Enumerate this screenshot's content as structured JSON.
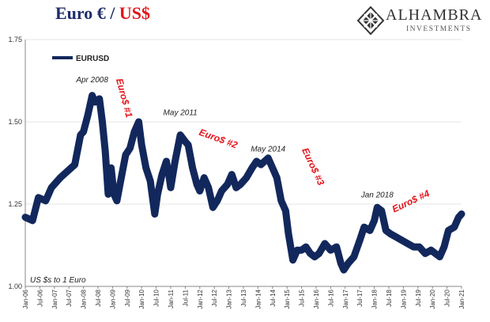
{
  "header": {
    "title_part1": "Euro € / ",
    "title_part2": "US$",
    "logo_name": "ALHAMBRA",
    "logo_sub": "INVESTMENTS",
    "logo_icon": "diamond-lattice-icon",
    "title_colors": {
      "part1": "#1f2d6b",
      "part2": "#e3141b"
    }
  },
  "chart_data": {
    "type": "line",
    "title": "Euro € / US$",
    "ylim": [
      1.0,
      1.75
    ],
    "yticks": [
      "1.00",
      "1.25",
      "1.50",
      "1.75"
    ],
    "xticks": [
      "Jan-06",
      "Jul-06",
      "Jan-07",
      "Jul-07",
      "Jan-08",
      "Jul-08",
      "Jan-09",
      "Jul-09",
      "Jan-10",
      "Jul-10",
      "Jan-11",
      "Jul-11",
      "Jan-12",
      "Jul-12",
      "Jan-13",
      "Jul-13",
      "Jan-14",
      "Jul-14",
      "Jan-15",
      "Jul-15",
      "Jan-16",
      "Jul-16",
      "Jan-17",
      "Jul-17",
      "Jan-18",
      "Jul-18",
      "Jan-19",
      "Jul-19",
      "Jan-20",
      "Jul-20",
      "Jan-21"
    ],
    "legend": {
      "label": "EURUSD",
      "position": "top-left"
    },
    "line_color": "#12285c",
    "grid": "horizontal",
    "note": "US $s to 1 Euro",
    "series": [
      {
        "name": "EURUSD",
        "points": [
          [
            2006.0,
            1.21
          ],
          [
            2006.25,
            1.2
          ],
          [
            2006.45,
            1.27
          ],
          [
            2006.7,
            1.26
          ],
          [
            2006.9,
            1.3
          ],
          [
            2007.0,
            1.31
          ],
          [
            2007.2,
            1.33
          ],
          [
            2007.45,
            1.35
          ],
          [
            2007.7,
            1.37
          ],
          [
            2007.9,
            1.46
          ],
          [
            2008.0,
            1.47
          ],
          [
            2008.15,
            1.52
          ],
          [
            2008.3,
            1.58
          ],
          [
            2008.4,
            1.56
          ],
          [
            2008.55,
            1.57
          ],
          [
            2008.65,
            1.5
          ],
          [
            2008.75,
            1.41
          ],
          [
            2008.85,
            1.28
          ],
          [
            2008.95,
            1.36
          ],
          [
            2009.05,
            1.28
          ],
          [
            2009.15,
            1.26
          ],
          [
            2009.3,
            1.33
          ],
          [
            2009.45,
            1.4
          ],
          [
            2009.6,
            1.42
          ],
          [
            2009.75,
            1.47
          ],
          [
            2009.9,
            1.5
          ],
          [
            2010.0,
            1.43
          ],
          [
            2010.15,
            1.36
          ],
          [
            2010.3,
            1.32
          ],
          [
            2010.45,
            1.22
          ],
          [
            2010.55,
            1.28
          ],
          [
            2010.7,
            1.34
          ],
          [
            2010.85,
            1.38
          ],
          [
            2010.95,
            1.33
          ],
          [
            2011.0,
            1.3
          ],
          [
            2011.15,
            1.38
          ],
          [
            2011.33,
            1.46
          ],
          [
            2011.5,
            1.44
          ],
          [
            2011.6,
            1.43
          ],
          [
            2011.75,
            1.36
          ],
          [
            2011.9,
            1.31
          ],
          [
            2012.0,
            1.29
          ],
          [
            2012.15,
            1.33
          ],
          [
            2012.3,
            1.3
          ],
          [
            2012.45,
            1.24
          ],
          [
            2012.6,
            1.26
          ],
          [
            2012.75,
            1.29
          ],
          [
            2012.95,
            1.31
          ],
          [
            2013.1,
            1.34
          ],
          [
            2013.25,
            1.3
          ],
          [
            2013.4,
            1.31
          ],
          [
            2013.6,
            1.33
          ],
          [
            2013.8,
            1.36
          ],
          [
            2013.95,
            1.38
          ],
          [
            2014.1,
            1.37
          ],
          [
            2014.35,
            1.39
          ],
          [
            2014.5,
            1.36
          ],
          [
            2014.65,
            1.33
          ],
          [
            2014.8,
            1.26
          ],
          [
            2014.95,
            1.23
          ],
          [
            2015.05,
            1.16
          ],
          [
            2015.2,
            1.08
          ],
          [
            2015.35,
            1.11
          ],
          [
            2015.5,
            1.11
          ],
          [
            2015.65,
            1.12
          ],
          [
            2015.8,
            1.1
          ],
          [
            2015.95,
            1.09
          ],
          [
            2016.1,
            1.1
          ],
          [
            2016.3,
            1.13
          ],
          [
            2016.5,
            1.11
          ],
          [
            2016.7,
            1.12
          ],
          [
            2016.85,
            1.07
          ],
          [
            2016.95,
            1.05
          ],
          [
            2017.1,
            1.07
          ],
          [
            2017.3,
            1.09
          ],
          [
            2017.5,
            1.14
          ],
          [
            2017.65,
            1.18
          ],
          [
            2017.85,
            1.17
          ],
          [
            2018.0,
            1.2
          ],
          [
            2018.1,
            1.24
          ],
          [
            2018.25,
            1.23
          ],
          [
            2018.4,
            1.17
          ],
          [
            2018.55,
            1.16
          ],
          [
            2018.75,
            1.15
          ],
          [
            2018.95,
            1.14
          ],
          [
            2019.15,
            1.13
          ],
          [
            2019.35,
            1.12
          ],
          [
            2019.55,
            1.12
          ],
          [
            2019.75,
            1.1
          ],
          [
            2019.95,
            1.11
          ],
          [
            2020.1,
            1.1
          ],
          [
            2020.25,
            1.09
          ],
          [
            2020.4,
            1.12
          ],
          [
            2020.55,
            1.17
          ],
          [
            2020.75,
            1.18
          ],
          [
            2020.9,
            1.21
          ],
          [
            2021.0,
            1.22
          ]
        ]
      }
    ],
    "annotations": [
      {
        "text": "Apr 2008",
        "x": 2008.3,
        "y": 1.62,
        "style": "plain"
      },
      {
        "text": "May 2011",
        "x": 2011.33,
        "y": 1.52,
        "style": "plain"
      },
      {
        "text": "May 2014",
        "x": 2014.35,
        "y": 1.41,
        "style": "plain"
      },
      {
        "text": "Jan 2018",
        "x": 2018.1,
        "y": 1.27,
        "style": "plain"
      },
      {
        "text": "Euro$ #1",
        "x": 2009.3,
        "y": 1.57,
        "style": "red",
        "angle": 75
      },
      {
        "text": "Euro$ #2",
        "x": 2012.6,
        "y": 1.44,
        "style": "red",
        "angle": 20
      },
      {
        "text": "Euro$ #3",
        "x": 2015.8,
        "y": 1.36,
        "style": "red",
        "angle": 65
      },
      {
        "text": "Euro$ #4",
        "x": 2019.3,
        "y": 1.25,
        "style": "red",
        "angle": -25
      }
    ]
  }
}
